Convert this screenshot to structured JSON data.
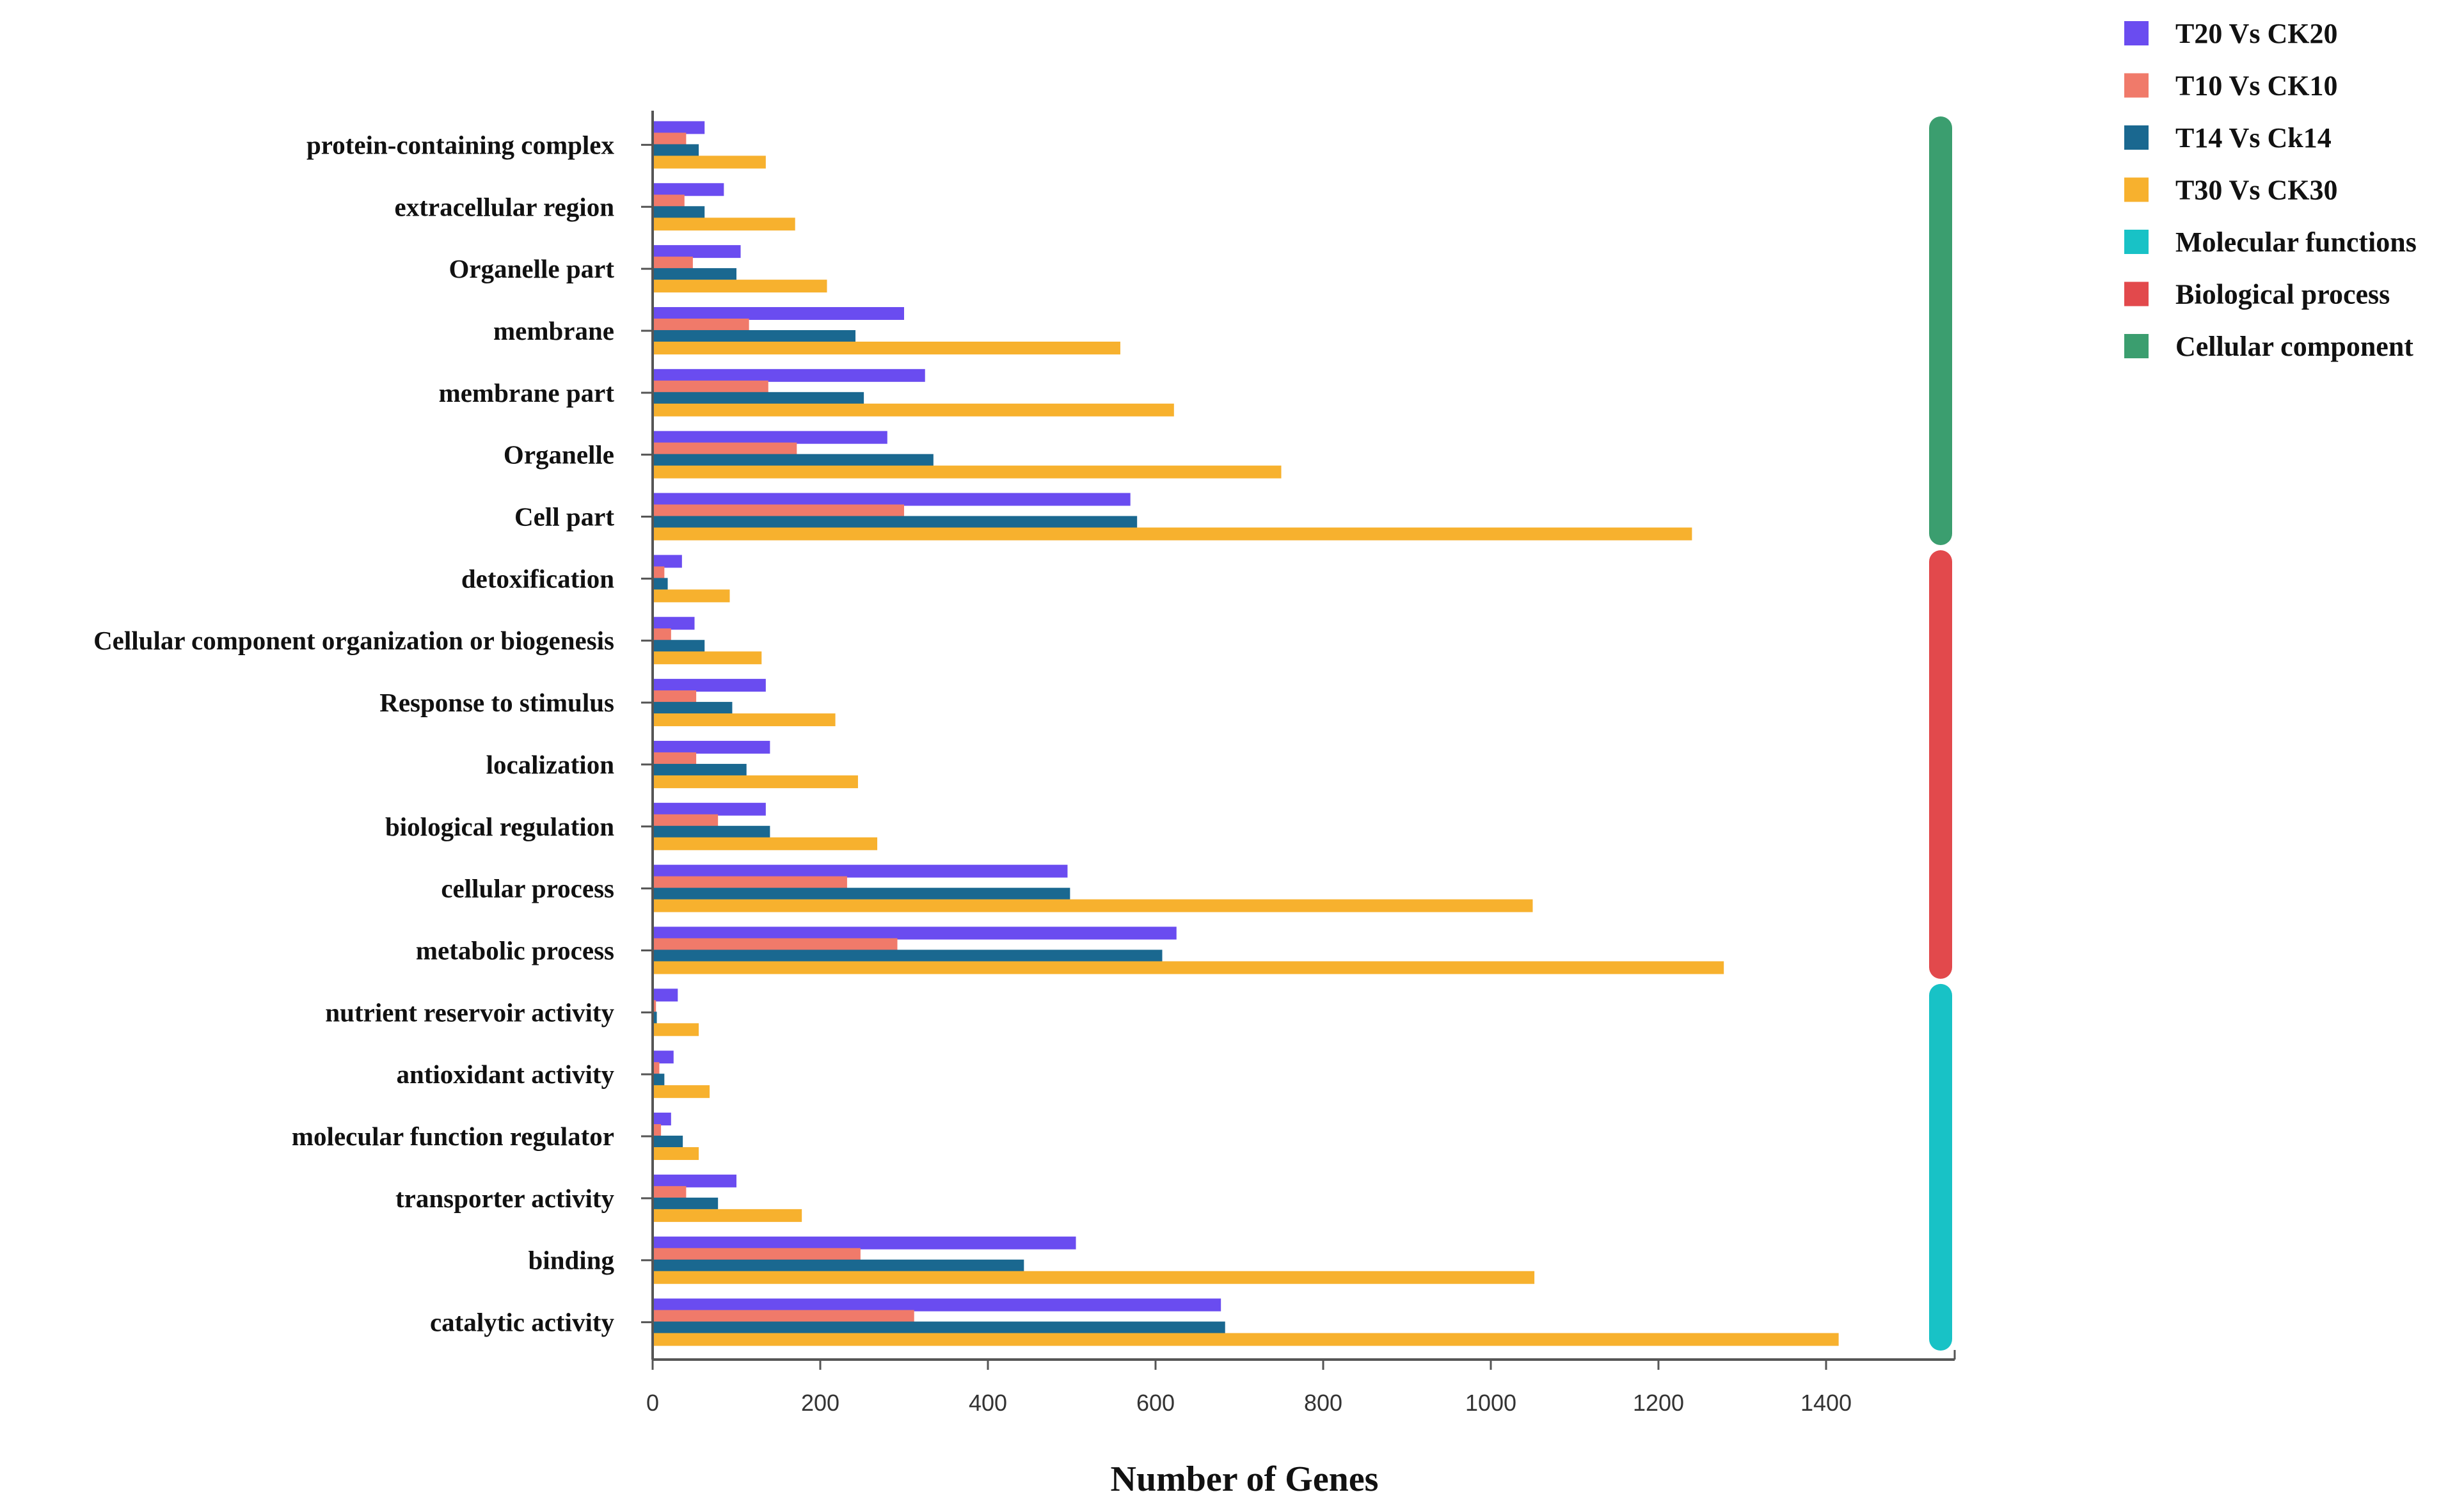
{
  "chart_data": {
    "type": "bar",
    "orientation": "horizontal",
    "title": "",
    "xlabel": "Number of Genes",
    "ylabel": "",
    "xlim": [
      0,
      1500
    ],
    "xticks": [
      0,
      200,
      400,
      600,
      800,
      1000,
      1200,
      1400
    ],
    "grid": false,
    "legend_position": "top-right",
    "categories": [
      "protein-containing complex",
      "extracellular region",
      "Organelle part",
      "membrane",
      "membrane part",
      "Organelle",
      "Cell part",
      "detoxification",
      "Cellular component organization or biogenesis",
      "Response to stimulus",
      "localization",
      "biological regulation",
      "cellular process",
      "metabolic process",
      "nutrient reservoir activity",
      "antioxidant activity",
      "molecular function regulator",
      "transporter activity",
      "binding",
      "catalytic activity"
    ],
    "series": [
      {
        "name": "T20 Vs CK20",
        "color": "#6a4cf0",
        "values": [
          62,
          85,
          105,
          300,
          325,
          280,
          570,
          35,
          50,
          135,
          140,
          135,
          495,
          625,
          30,
          25,
          22,
          100,
          505,
          678
        ]
      },
      {
        "name": "T10 Vs CK10",
        "color": "#f07a6a",
        "values": [
          40,
          38,
          48,
          115,
          138,
          172,
          300,
          14,
          22,
          52,
          52,
          78,
          232,
          292,
          4,
          8,
          10,
          40,
          248,
          312
        ]
      },
      {
        "name": "T14 Vs Ck14",
        "color": "#1a6890",
        "values": [
          55,
          62,
          100,
          242,
          252,
          335,
          578,
          18,
          62,
          95,
          112,
          140,
          498,
          608,
          5,
          14,
          36,
          78,
          443,
          683
        ]
      },
      {
        "name": "T30 Vs CK30",
        "color": "#f7b12e",
        "values": [
          135,
          170,
          208,
          558,
          622,
          750,
          1240,
          92,
          130,
          218,
          245,
          268,
          1050,
          1278,
          55,
          68,
          55,
          178,
          1052,
          1415
        ]
      }
    ],
    "groups": [
      {
        "name": "Cellular component",
        "color": "#3b9e6f",
        "from": 0,
        "to": 6
      },
      {
        "name": "Biological process",
        "color": "#e2494c",
        "from": 7,
        "to": 13
      },
      {
        "name": "Molecular functions",
        "color": "#18c2c6",
        "from": 14,
        "to": 19
      }
    ],
    "legend": [
      {
        "label": "T20 Vs CK20",
        "color": "#6a4cf0"
      },
      {
        "label": "T10 Vs CK10",
        "color": "#f07a6a"
      },
      {
        "label": "T14 Vs Ck14",
        "color": "#1a6890"
      },
      {
        "label": "T30 Vs CK30",
        "color": "#f7b12e"
      },
      {
        "label": "Molecular functions",
        "color": "#18c2c6"
      },
      {
        "label": "Biological process",
        "color": "#e2494c"
      },
      {
        "label": "Cellular component",
        "color": "#3b9e6f"
      }
    ]
  }
}
